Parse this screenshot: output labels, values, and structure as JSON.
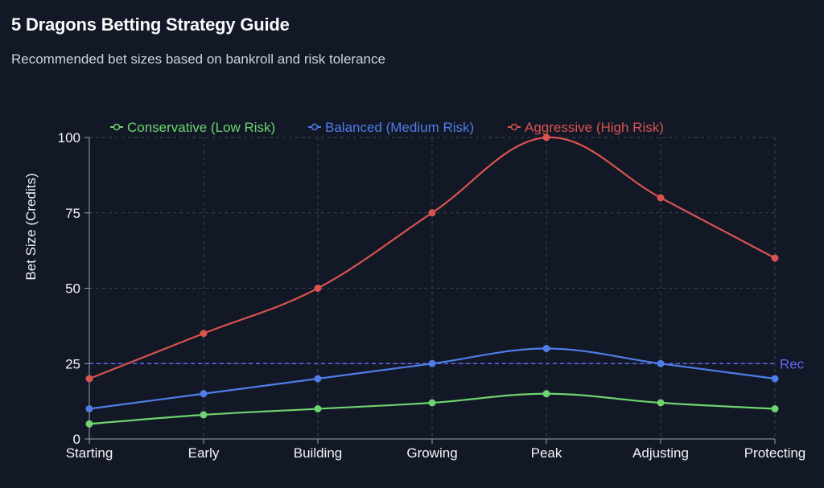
{
  "header": {
    "title": "5 Dragons Betting Strategy Guide",
    "subtitle": "Recommended bet sizes based on bankroll and risk tolerance"
  },
  "chart_data": {
    "type": "line",
    "title": "",
    "xlabel": "",
    "ylabel": "Bet Size (Credits)",
    "categories": [
      "Starting",
      "Early",
      "Building",
      "Growing",
      "Peak",
      "Adjusting",
      "Protecting"
    ],
    "series": [
      {
        "name": "Conservative (Low Risk)",
        "color": "#6fd46f",
        "values": [
          5,
          8,
          10,
          12,
          15,
          12,
          10
        ]
      },
      {
        "name": "Balanced (Medium Risk)",
        "color": "#4f7de8",
        "values": [
          10,
          15,
          20,
          25,
          30,
          25,
          20
        ]
      },
      {
        "name": "Aggressive (High Risk)",
        "color": "#d9534f",
        "values": [
          20,
          35,
          50,
          75,
          100,
          80,
          60
        ]
      }
    ],
    "ylim": [
      0,
      100
    ],
    "yticks": [
      0,
      25,
      50,
      75,
      100
    ],
    "grid": true,
    "legend_position": "top",
    "reference_line": {
      "value": 25,
      "label": "Rec",
      "color": "#6366f1"
    }
  }
}
